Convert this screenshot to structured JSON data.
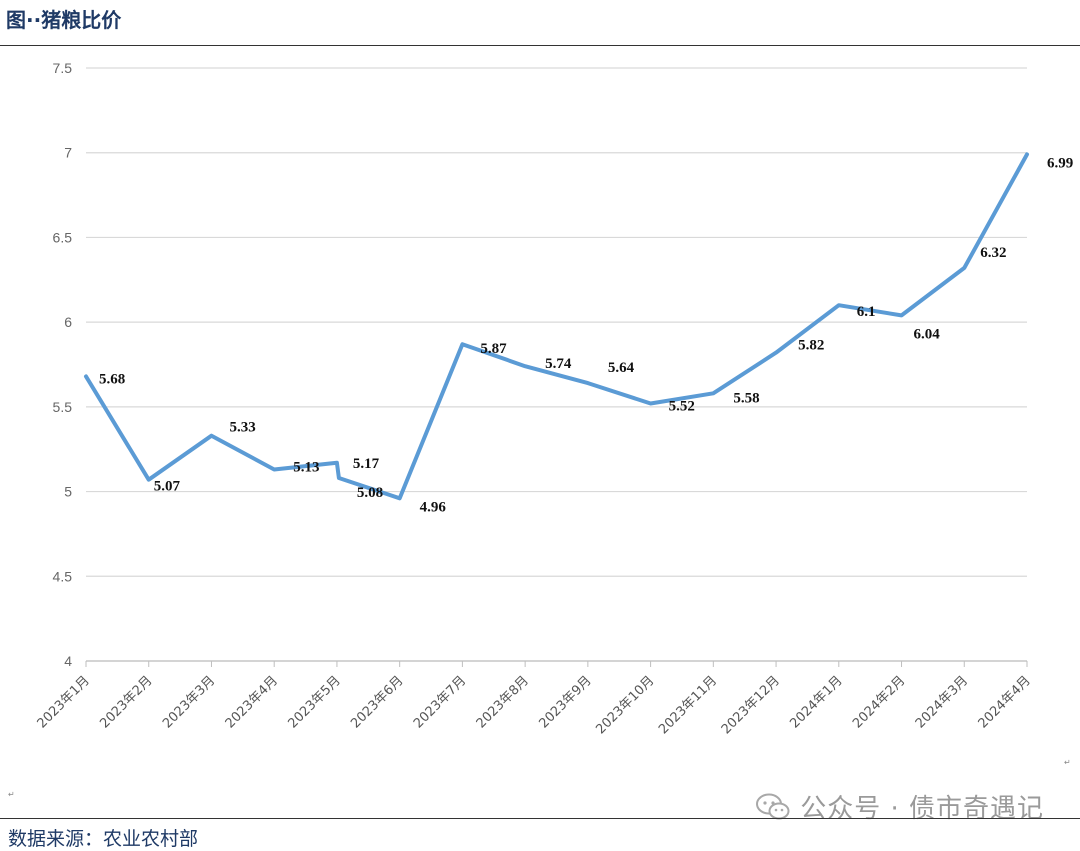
{
  "header": {
    "title": "图··猪粮比价"
  },
  "footer": {
    "source": "数据来源：农业农村部"
  },
  "watermark": {
    "text": "公众号 · 债市奇遇记",
    "icon": "wechat-icon"
  },
  "chart_data": {
    "type": "line",
    "title": "图··猪粮比价",
    "categories": [
      "2023年1月",
      "2023年2月",
      "2023年3月",
      "2023年4月",
      "2023年5月",
      "2023年6月",
      "2023年7月",
      "2023年8月",
      "2023年9月",
      "2023年10月",
      "2023年11月",
      "2023年12月",
      "2024年1月",
      "2024年2月",
      "2024年3月",
      "2024年4月"
    ],
    "points": [
      {
        "cat": 0,
        "value": 5.68
      },
      {
        "cat": 1,
        "value": 5.07
      },
      {
        "cat": 2,
        "value": 5.33
      },
      {
        "cat": 3,
        "value": 5.13
      },
      {
        "cat": 4,
        "value": 5.17
      },
      {
        "cat": 4,
        "value": 5.08
      },
      {
        "cat": 5,
        "value": 4.96
      },
      {
        "cat": 6,
        "value": 5.87
      },
      {
        "cat": 7,
        "value": 5.74
      },
      {
        "cat": 8,
        "value": 5.64
      },
      {
        "cat": 9,
        "value": 5.52
      },
      {
        "cat": 10,
        "value": 5.58
      },
      {
        "cat": 11,
        "value": 5.82
      },
      {
        "cat": 12,
        "value": 6.1
      },
      {
        "cat": 13,
        "value": 6.04
      },
      {
        "cat": 14,
        "value": 6.32
      },
      {
        "cat": 15,
        "value": 6.99
      }
    ],
    "data_labels": [
      "5.68",
      "5.07",
      "5.33",
      "5.13",
      "5.17",
      "5.08",
      "4.96",
      "5.87",
      "5.74",
      "5.64",
      "5.52",
      "5.58",
      "5.82",
      "6.1",
      "6.04",
      "6.32",
      "6.99"
    ],
    "yticks": [
      "4",
      "4.5",
      "5",
      "5.5",
      "6",
      "6.5",
      "7",
      "7.5"
    ],
    "ylim": [
      4,
      7.5
    ],
    "grid": true,
    "legend": "none",
    "line_color": "#5b9bd5",
    "xlabel": "",
    "ylabel": ""
  }
}
